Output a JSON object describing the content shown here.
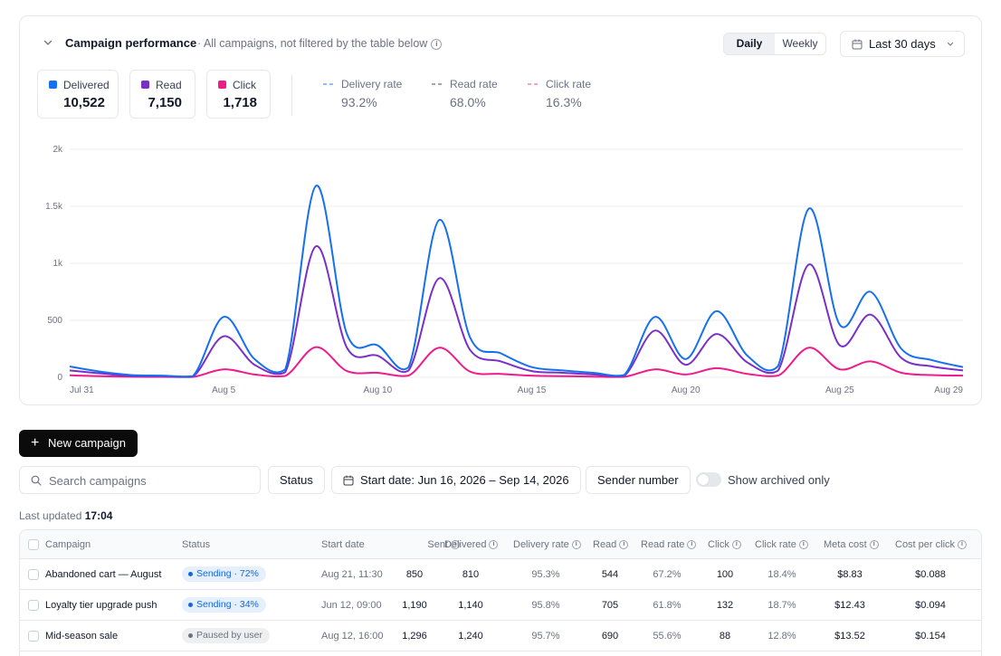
{
  "card": {
    "title": "Campaign performance",
    "subtitle": "· All campaigns, not filtered by the table below",
    "info": "i",
    "toggle": {
      "daily": "Daily",
      "weekly": "Weekly",
      "selected": "Daily"
    },
    "range": "Last 30 days"
  },
  "metrics": [
    {
      "label": "Delivered",
      "value": "10,522",
      "color": "#1570ef"
    },
    {
      "label": "Read",
      "value": "7,150",
      "color": "#7a2fc9"
    },
    {
      "label": "Click",
      "value": "1,718",
      "color": "#ee1b8c"
    }
  ],
  "rates": [
    {
      "label": "Delivery rate",
      "value": "93.2%",
      "color": "#8ec0f2"
    },
    {
      "label": "Read rate",
      "value": "68.0%",
      "color": "#9ea6b6"
    },
    {
      "label": "Click rate",
      "value": "16.3%",
      "color": "#f6a0c4"
    }
  ],
  "chart_data": {
    "type": "line",
    "y_ticks": [
      "0",
      "500",
      "1k",
      "1.5k",
      "2k"
    ],
    "ylim": [
      0,
      2000
    ],
    "x_tick_labels": [
      "Jul 31",
      "Aug 5",
      "Aug 10",
      "Aug 15",
      "Aug 20",
      "Aug 25",
      "Aug 29"
    ],
    "x": [
      "Jul 31",
      "Aug 1",
      "Aug 2",
      "Aug 3",
      "Aug 4",
      "Aug 5",
      "Aug 6",
      "Aug 7",
      "Aug 8",
      "Aug 9",
      "Aug 10",
      "Aug 11",
      "Aug 12",
      "Aug 13",
      "Aug 14",
      "Aug 15",
      "Aug 16",
      "Aug 17",
      "Aug 18",
      "Aug 19",
      "Aug 20",
      "Aug 21",
      "Aug 22",
      "Aug 23",
      "Aug 24",
      "Aug 25",
      "Aug 26",
      "Aug 27",
      "Aug 28",
      "Aug 29"
    ],
    "series": [
      {
        "name": "Delivered",
        "color": "#1570ef",
        "values": [
          95,
          50,
          20,
          15,
          10,
          530,
          160,
          70,
          1680,
          380,
          280,
          90,
          1380,
          350,
          210,
          90,
          60,
          40,
          20,
          530,
          160,
          580,
          190,
          100,
          1480,
          460,
          750,
          250,
          150,
          90
        ]
      },
      {
        "name": "Read",
        "color": "#7a2fc9",
        "values": [
          60,
          35,
          12,
          10,
          6,
          360,
          110,
          45,
          1150,
          260,
          190,
          60,
          870,
          240,
          140,
          55,
          40,
          25,
          12,
          410,
          110,
          380,
          130,
          60,
          990,
          280,
          550,
          170,
          95,
          60
        ]
      },
      {
        "name": "Click",
        "color": "#ee1b8c",
        "values": [
          18,
          10,
          5,
          4,
          3,
          70,
          25,
          12,
          265,
          55,
          40,
          15,
          260,
          50,
          30,
          15,
          10,
          6,
          4,
          70,
          25,
          80,
          30,
          15,
          260,
          70,
          140,
          40,
          20,
          15
        ]
      }
    ],
    "grid": true
  },
  "actions": {
    "new_campaign": "New campaign",
    "plus": "+"
  },
  "filters": {
    "search_placeholder": "Search campaigns",
    "status": "Status",
    "date": "Start date: Jun 16, 2026 – Sep 14, 2026",
    "sender": "Sender number",
    "archived": "Show archived only"
  },
  "updated": {
    "label": "Last updated",
    "time": "17:04"
  },
  "table": {
    "headers": [
      "Campaign",
      "Status",
      "Start date",
      "Sent",
      "Delivered",
      "Delivery rate",
      "Read",
      "Read rate",
      "Click",
      "Click rate",
      "Meta cost",
      "Cost per click"
    ],
    "rows": [
      {
        "campaign": "Abandoned cart — August",
        "status": "Sending · 72%",
        "status_kind": "blue",
        "start": "Aug 21, 11:30",
        "sent": "850",
        "delivered": "810",
        "delivery_rate": "95.3%",
        "read": "544",
        "read_rate": "67.2%",
        "click": "100",
        "click_rate": "18.4%",
        "meta_cost": "$8.83",
        "cpc": "$0.088"
      },
      {
        "campaign": "Loyalty tier upgrade push",
        "status": "Sending · 34%",
        "status_kind": "blue",
        "start": "Jun 12, 09:00",
        "sent": "1,190",
        "delivered": "1,140",
        "delivery_rate": "95.8%",
        "read": "705",
        "read_rate": "61.8%",
        "click": "132",
        "click_rate": "18.7%",
        "meta_cost": "$12.43",
        "cpc": "$0.094"
      },
      {
        "campaign": "Mid-season sale",
        "status": "Paused by user",
        "status_kind": "gray",
        "start": "Aug 12, 16:00",
        "sent": "1,296",
        "delivered": "1,240",
        "delivery_rate": "95.7%",
        "read": "690",
        "read_rate": "55.6%",
        "click": "88",
        "click_rate": "12.8%",
        "meta_cost": "$13.52",
        "cpc": "$0.154"
      }
    ]
  }
}
